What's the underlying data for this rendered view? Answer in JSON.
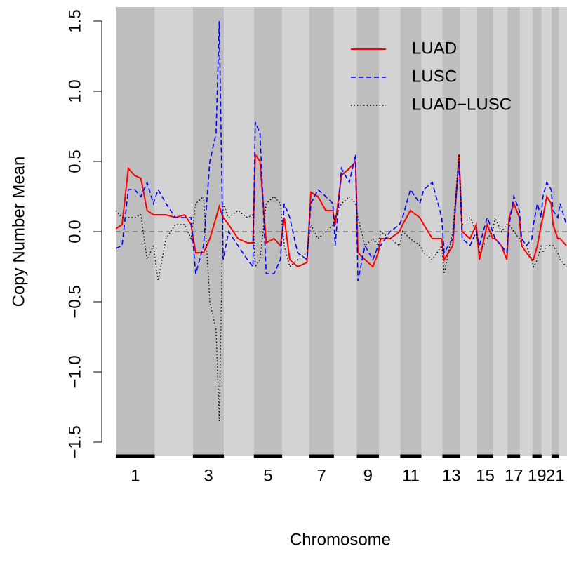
{
  "chart_data": {
    "type": "line",
    "ylabel": "Copy Number Mean",
    "xlabel": "Chromosome",
    "xlim": [
      0,
      2879
    ],
    "ylim": [
      -1.6,
      1.6
    ],
    "yticks": [
      {
        "value": -1.5,
        "label": "−1.5"
      },
      {
        "value": -1.0,
        "label": "−1.0"
      },
      {
        "value": -0.5,
        "label": "−0.5"
      },
      {
        "value": 0,
        "label": "0.0"
      },
      0.5,
      {
        "value": 1.0,
        "label": "1.0"
      },
      1.5
    ],
    "xticks": [
      {
        "value": 124.5,
        "label": "1"
      },
      {
        "value": 591,
        "label": "3"
      },
      {
        "value": 971.5,
        "label": "5"
      },
      {
        "value": 1312.5,
        "label": "7"
      },
      {
        "value": 1608.5,
        "label": "9"
      },
      {
        "value": 1882.5,
        "label": "11"
      },
      {
        "value": 2141.5,
        "label": "13"
      },
      {
        "value": 2357.5,
        "label": "15"
      },
      {
        "value": 2539.5,
        "label": "17"
      },
      {
        "value": 2687.5,
        "label": "19"
      },
      {
        "value": 2804,
        "label": "21"
      }
    ],
    "band_edges": [
      0,
      249,
      492,
      690,
      881,
      1062,
      1233,
      1392,
      1538,
      1679,
      1815,
      1950,
      2084,
      2199,
      2306,
      2409,
      2499,
      2580,
      2658,
      2717,
      2780,
      2828,
      2879
    ],
    "band_colors": [
      "#bebebe",
      "#d3d3d3"
    ],
    "reference_line": 0,
    "legend": "top right",
    "x": [
      0,
      40,
      80,
      120,
      160,
      200,
      240,
      270,
      320,
      380,
      440,
      480,
      510,
      560,
      600,
      640,
      660,
      685,
      720,
      780,
      840,
      875,
      890,
      920,
      960,
      1010,
      1050,
      1075,
      1110,
      1160,
      1220,
      1245,
      1290,
      1340,
      1385,
      1400,
      1440,
      1490,
      1530,
      1545,
      1590,
      1640,
      1675,
      1690,
      1750,
      1810,
      1830,
      1880,
      1940,
      1965,
      2020,
      2080,
      2095,
      2150,
      2190,
      2210,
      2260,
      2300,
      2320,
      2370,
      2405,
      2420,
      2460,
      2495,
      2510,
      2540,
      2575,
      2590,
      2620,
      2655,
      2665,
      2690,
      2714,
      2725,
      2750,
      2778,
      2790,
      2820,
      2835,
      2875
    ],
    "series": [
      {
        "name": "LUAD",
        "color": "#ff0000",
        "linestyle": "solid",
        "values": [
          0.02,
          0.05,
          0.45,
          0.4,
          0.38,
          0.15,
          0.12,
          0.12,
          0.12,
          0.1,
          0.12,
          0.05,
          -0.15,
          -0.15,
          -0.05,
          0.1,
          0.18,
          0.1,
          0.05,
          -0.05,
          -0.08,
          -0.08,
          0.55,
          0.5,
          -0.08,
          -0.05,
          -0.1,
          0.1,
          -0.2,
          -0.25,
          -0.22,
          0.28,
          0.25,
          0.15,
          0.15,
          0.05,
          0.4,
          0.45,
          0.5,
          -0.15,
          -0.2,
          -0.25,
          -0.15,
          -0.05,
          -0.05,
          0,
          0.05,
          0.15,
          0.1,
          0.05,
          -0.05,
          -0.05,
          -0.2,
          -0.1,
          0.55,
          0,
          -0.05,
          0.05,
          -0.2,
          0.05,
          -0.05,
          -0.05,
          -0.1,
          -0.2,
          0.1,
          0.2,
          0.1,
          -0.1,
          -0.15,
          -0.2,
          -0.2,
          -0.1,
          0.05,
          0.1,
          0.25,
          0.2,
          0.05,
          -0.05,
          -0.05,
          -0.1
        ]
      },
      {
        "name": "LUSC",
        "color": "#0000ff",
        "linestyle": "dashed",
        "values": [
          -0.12,
          -0.1,
          0.3,
          0.3,
          0.25,
          0.35,
          0.2,
          0.3,
          0.2,
          0.1,
          0.1,
          0.1,
          -0.3,
          -0.1,
          0.5,
          0.7,
          1.5,
          -0.2,
          0,
          -0.1,
          -0.2,
          -0.25,
          0.78,
          0.7,
          -0.3,
          -0.3,
          -0.2,
          0.2,
          0.1,
          -0.15,
          -0.2,
          0.2,
          0.3,
          0.25,
          0.2,
          -0.1,
          0.45,
          0.35,
          0.55,
          -0.35,
          -0.1,
          -0.2,
          -0.1,
          -0.1,
          0,
          0.05,
          0.1,
          0.3,
          0.2,
          0.3,
          0.35,
          0.1,
          -0.15,
          -0.05,
          0.5,
          -0.05,
          -0.1,
          0,
          -0.1,
          0.1,
          0,
          -0.05,
          -0.1,
          -0.15,
          0.05,
          0.25,
          0.15,
          -0.05,
          -0.1,
          -0.05,
          0.05,
          0.2,
          0.1,
          0.25,
          0.35,
          0.3,
          0.15,
          0.1,
          0.2,
          0.05
        ]
      },
      {
        "name": "LUAD−LUSC",
        "color": "#000000",
        "linestyle": "dotted",
        "values": [
          0.15,
          0.1,
          0.1,
          0.1,
          0.12,
          -0.2,
          -0.1,
          -0.35,
          -0.05,
          0.05,
          0.05,
          -0.05,
          0.2,
          0.25,
          -0.5,
          -0.7,
          -1.35,
          0.2,
          0.1,
          0.15,
          0.1,
          0.12,
          -0.25,
          -0.2,
          0.2,
          0.25,
          0.2,
          -0.1,
          -0.25,
          -0.2,
          -0.15,
          0.05,
          -0.05,
          0,
          0.05,
          0.1,
          0.2,
          0.25,
          0.2,
          0.1,
          -0.1,
          -0.05,
          -0.1,
          0,
          -0.05,
          -0.1,
          0,
          -0.05,
          -0.1,
          -0.15,
          -0.2,
          -0.1,
          -0.3,
          0,
          0.55,
          0.05,
          0.1,
          0,
          -0.15,
          -0.05,
          0,
          0.1,
          0,
          0.05,
          0.05,
          0,
          -0.05,
          -0.1,
          -0.1,
          -0.2,
          -0.25,
          -0.2,
          -0.1,
          -0.15,
          -0.1,
          -0.1,
          -0.1,
          -0.15,
          -0.2,
          -0.25
        ]
      }
    ]
  }
}
